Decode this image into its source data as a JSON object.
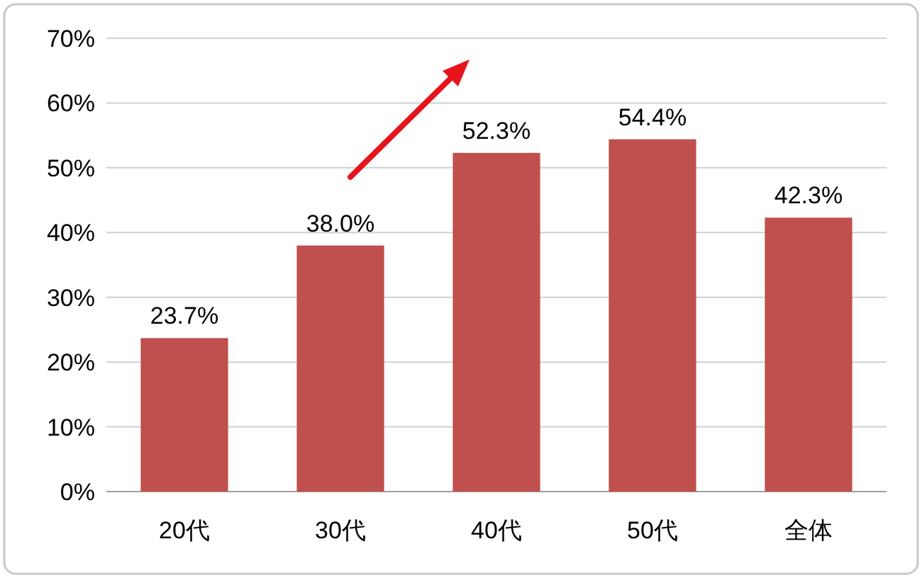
{
  "chart_data": {
    "type": "bar",
    "categories": [
      "20代",
      "30代",
      "40代",
      "50代",
      "全体"
    ],
    "values": [
      23.7,
      38.0,
      52.3,
      54.4,
      42.3
    ],
    "value_labels": [
      "23.7%",
      "38.0%",
      "52.3%",
      "54.4%",
      "42.3%"
    ],
    "color": "#c0504d",
    "ylim": [
      0,
      70
    ],
    "yticks": [
      {
        "value": 0,
        "label": "0%"
      },
      {
        "value": 10,
        "label": "10%"
      },
      {
        "value": 20,
        "label": "20%"
      },
      {
        "value": 30,
        "label": "30%"
      },
      {
        "value": 40,
        "label": "40%"
      },
      {
        "value": 50,
        "label": "50%"
      },
      {
        "value": 60,
        "label": "60%"
      },
      {
        "value": 70,
        "label": "70%"
      }
    ],
    "grid": "y"
  }
}
